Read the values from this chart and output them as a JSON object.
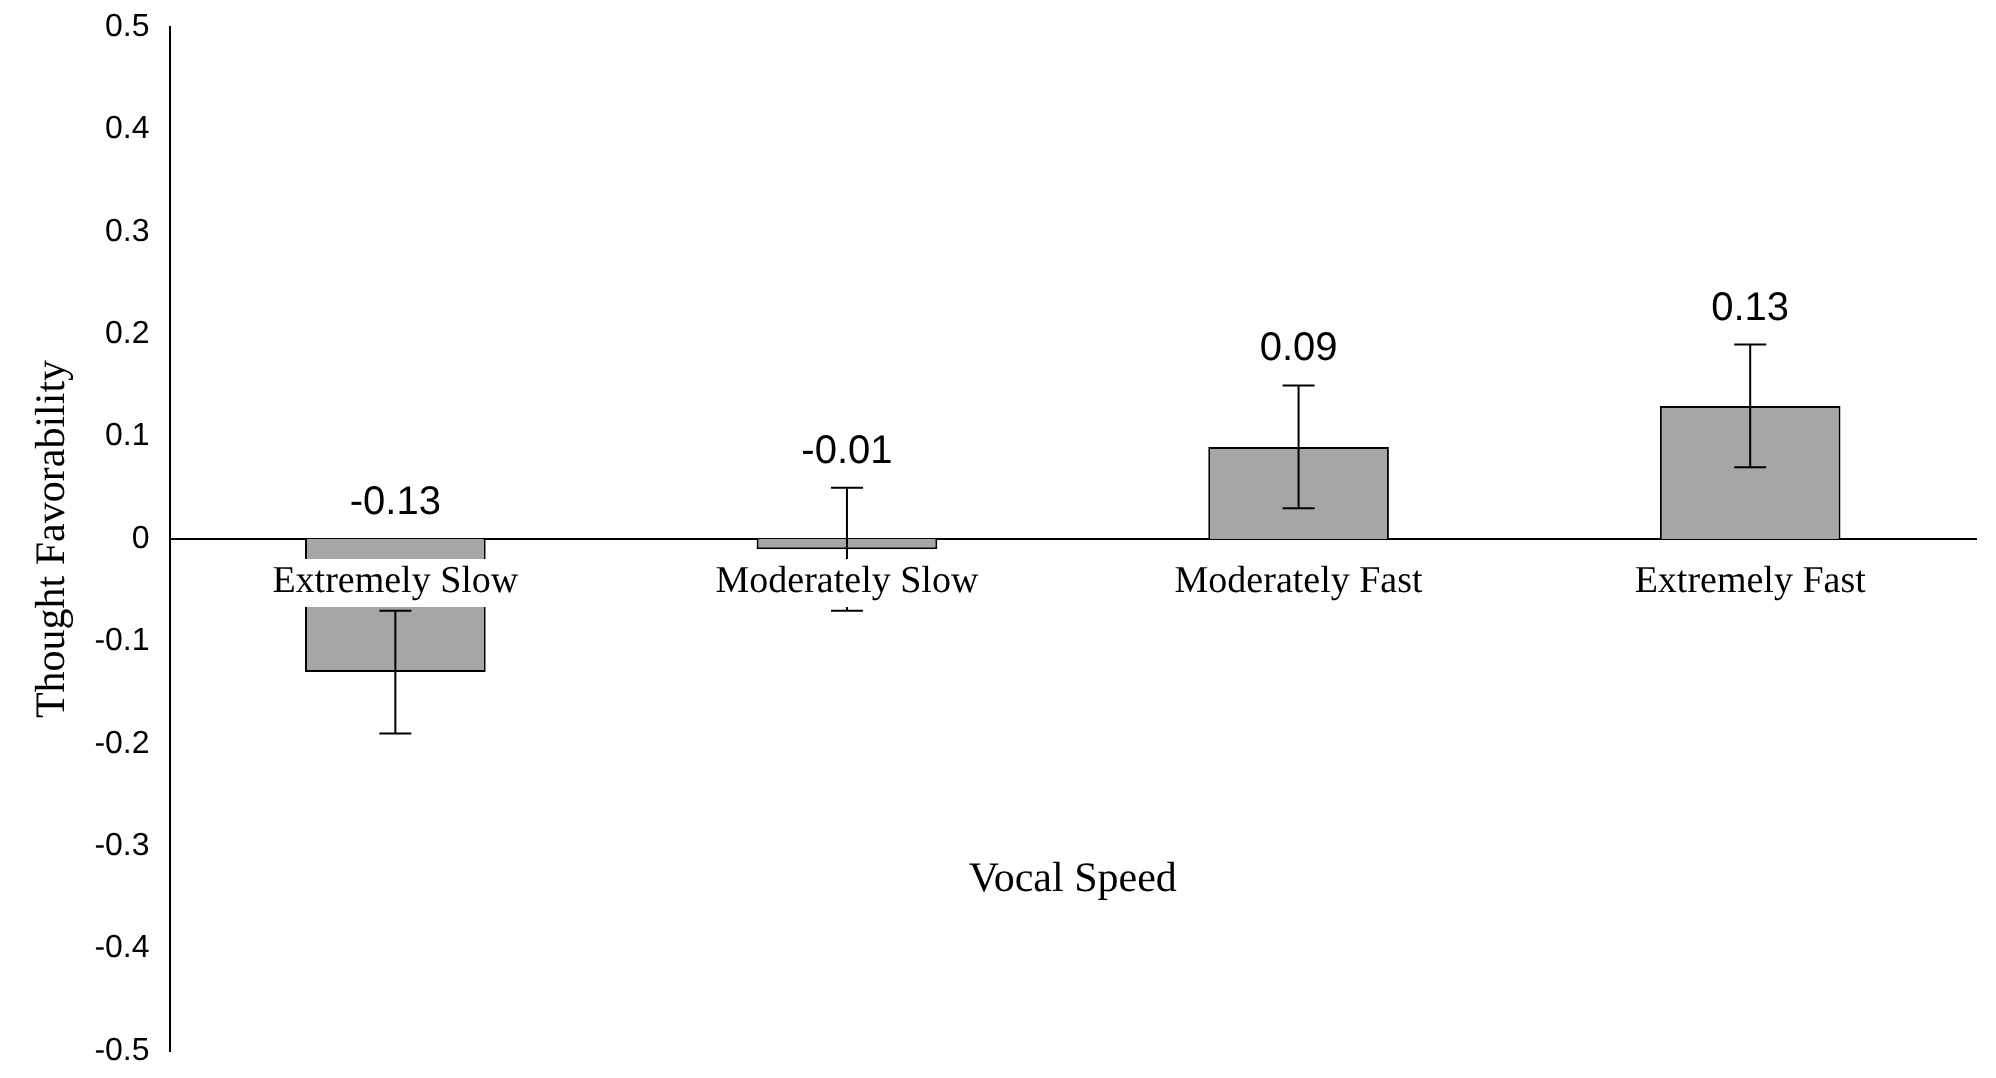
{
  "chart_data": {
    "type": "bar",
    "xlabel": "Vocal Speed",
    "ylabel": "Thought Favorability",
    "categories": [
      "Extremely Slow",
      "Moderately Slow",
      "Moderately Fast",
      "Extremely Fast"
    ],
    "values": [
      -0.13,
      -0.01,
      0.09,
      0.13
    ],
    "errors": [
      0.06,
      0.06,
      0.06,
      0.06
    ],
    "color": "#a6a6a6",
    "data_labels": true,
    "ylim": [
      -0.5,
      0.5
    ],
    "yticks": [
      -0.5,
      -0.4,
      -0.3,
      -0.2,
      -0.1,
      0,
      0.1,
      0.2,
      0.3,
      0.4,
      0.5
    ]
  }
}
